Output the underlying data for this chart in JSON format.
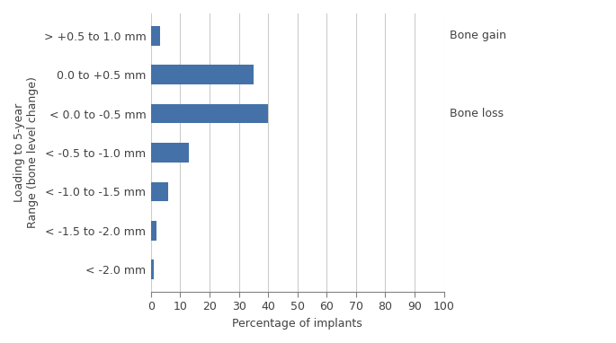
{
  "categories": [
    "> +0.5 to 1.0 mm",
    "0.0 to +0.5 mm",
    "< 0.0 to -0.5 mm",
    "< -0.5 to -1.0 mm",
    "< -1.0 to -1.5 mm",
    "< -1.5 to -2.0 mm",
    "< -2.0 mm"
  ],
  "values": [
    3,
    35,
    40,
    13,
    6,
    2,
    1
  ],
  "bar_color": "#4472a8",
  "xlabel": "Percentage of implants",
  "ylabel": "Loading to 5-year\nRange (bone level change)",
  "xlim": [
    0,
    100
  ],
  "xticks": [
    0,
    10,
    20,
    30,
    40,
    50,
    60,
    70,
    80,
    90,
    100
  ],
  "annotation_bone_gain": "Bone gain",
  "annotation_bone_loss": "Bone loss",
  "bar_height": 0.5,
  "background_color": "#ffffff",
  "grid_color": "#cccccc",
  "text_color": "#404040",
  "font_size": 9
}
